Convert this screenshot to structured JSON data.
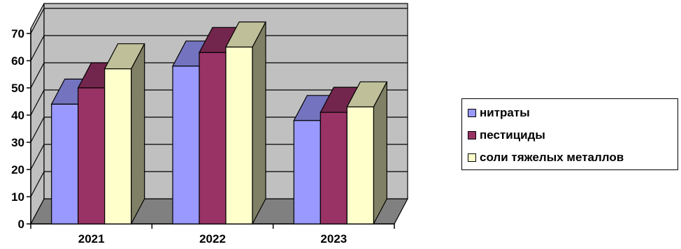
{
  "chart_data": {
    "type": "bar",
    "title": "",
    "xlabel": "",
    "ylabel": "",
    "categories": [
      "2021",
      "2022",
      "2023"
    ],
    "series": [
      {
        "name": "нитраты",
        "values": [
          44,
          58,
          38
        ],
        "color": "#9999ff"
      },
      {
        "name": "пестициды",
        "values": [
          50,
          63,
          41
        ],
        "color": "#993366"
      },
      {
        "name": "соли тяжелых металлов",
        "values": [
          57,
          65,
          43
        ],
        "color": "#ffffcc"
      }
    ],
    "ylim": [
      0,
      70
    ],
    "yticks": [
      "0",
      "10",
      "20",
      "30",
      "40",
      "50",
      "60",
      "70"
    ],
    "grid": true,
    "three_d": true,
    "wall_color": "#c0c0c0",
    "floor_color": "#808080",
    "legend": "right"
  }
}
